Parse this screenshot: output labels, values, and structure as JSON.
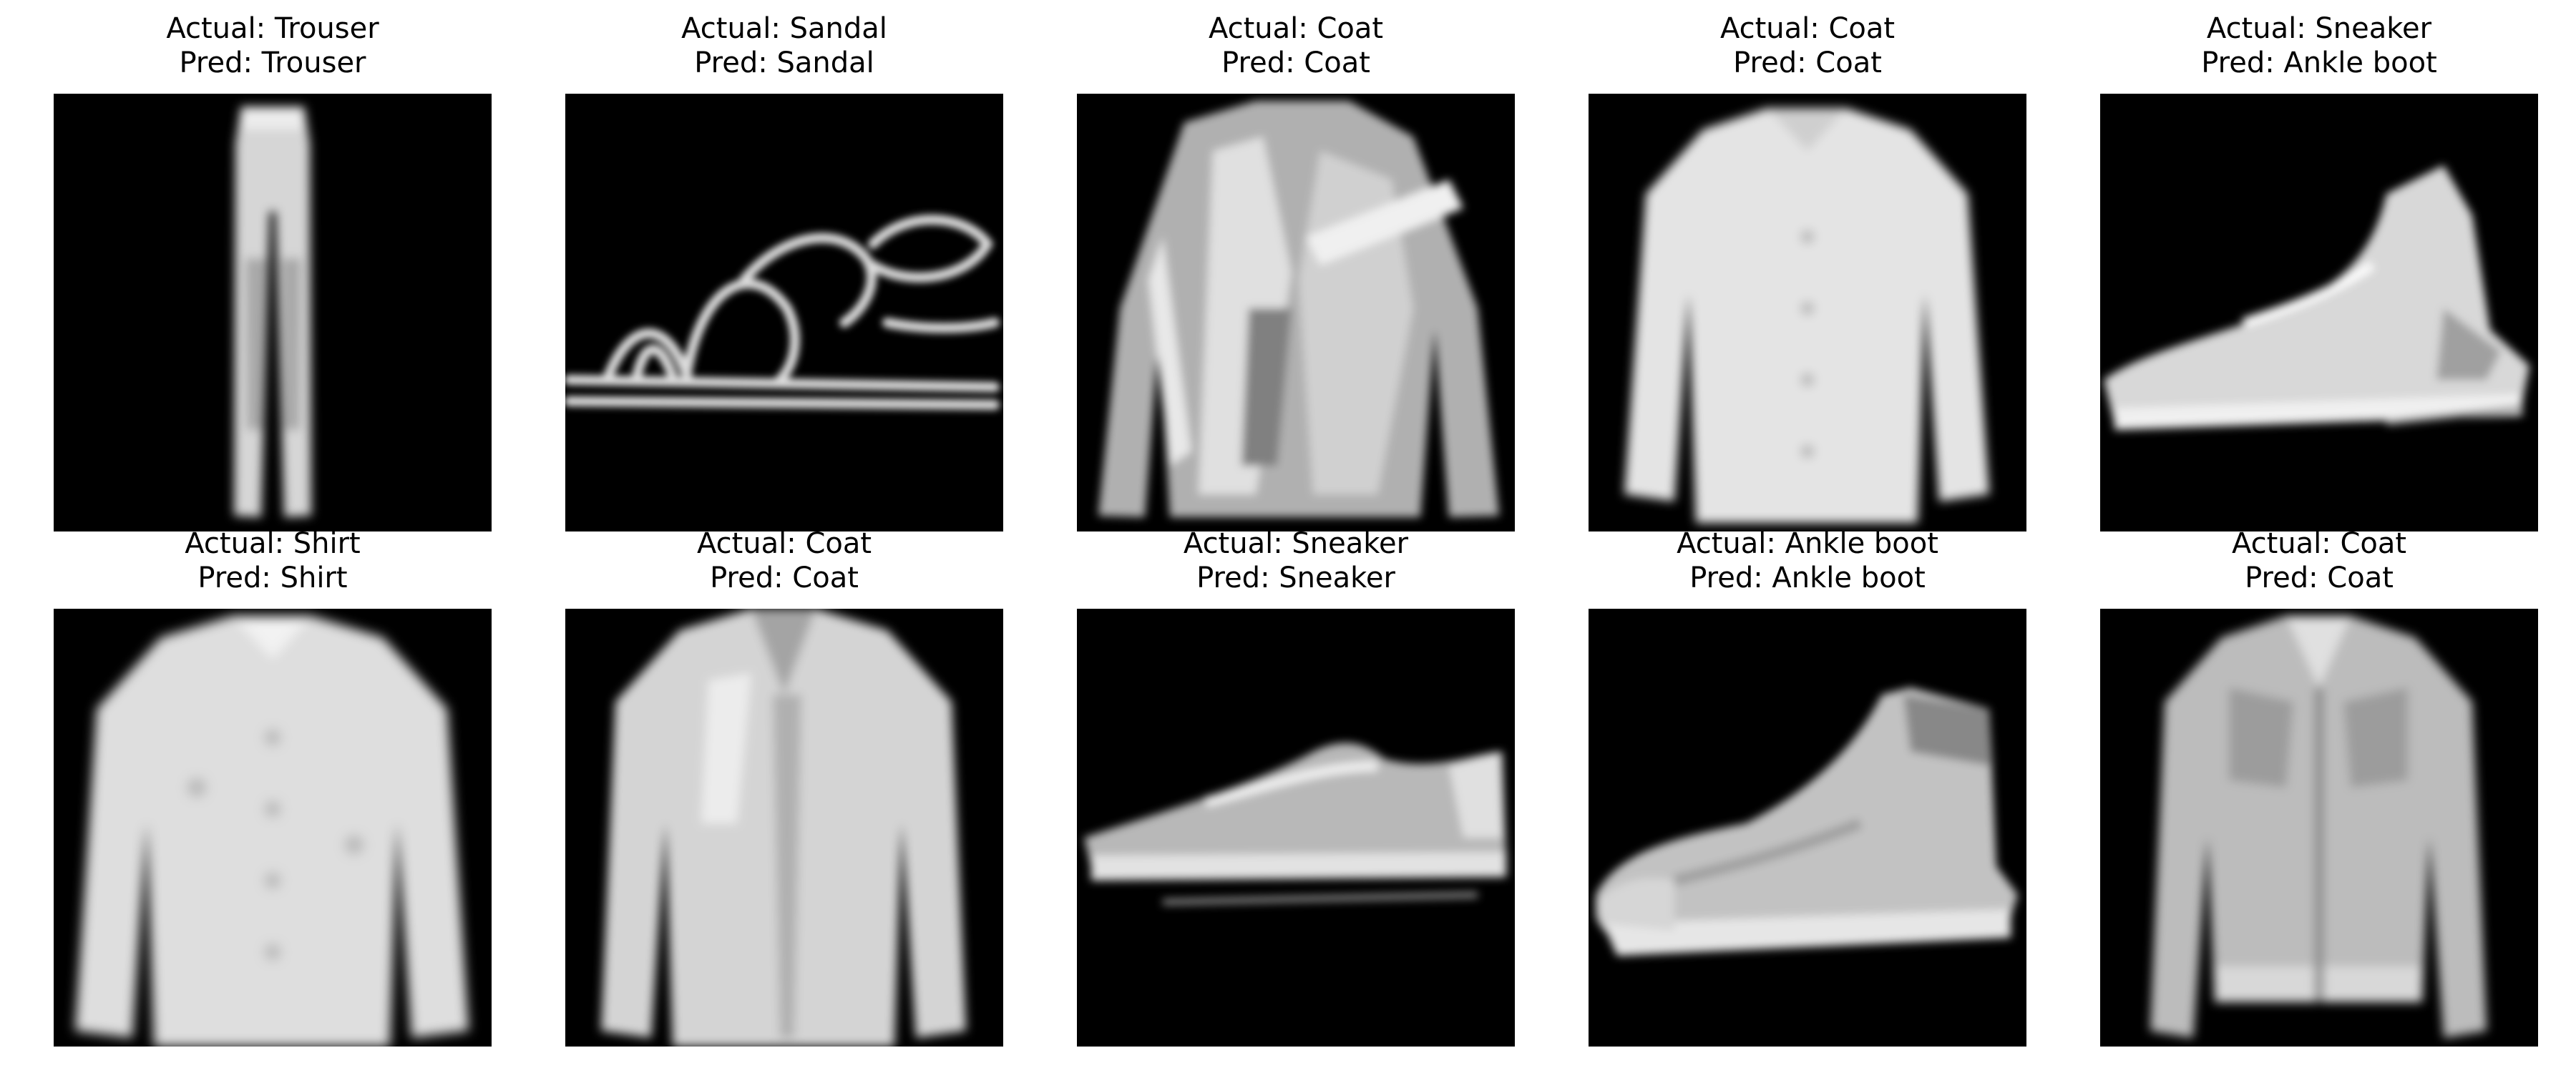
{
  "panels": [
    {
      "actual_label": "Actual: Trouser",
      "pred_label": "Pred: Trouser",
      "item": "trouser-image"
    },
    {
      "actual_label": "Actual: Sandal",
      "pred_label": "Pred: Sandal",
      "item": "sandal-image"
    },
    {
      "actual_label": "Actual: Coat",
      "pred_label": "Pred: Coat",
      "item": "coat-image"
    },
    {
      "actual_label": "Actual: Coat",
      "pred_label": "Pred: Coat",
      "item": "coat-image"
    },
    {
      "actual_label": "Actual: Sneaker",
      "pred_label": "Pred: Ankle boot",
      "item": "sneaker-image"
    },
    {
      "actual_label": "Actual: Shirt",
      "pred_label": "Pred: Shirt",
      "item": "shirt-image"
    },
    {
      "actual_label": "Actual: Coat",
      "pred_label": "Pred: Coat",
      "item": "coat-image"
    },
    {
      "actual_label": "Actual: Sneaker",
      "pred_label": "Pred: Sneaker",
      "item": "sneaker-image"
    },
    {
      "actual_label": "Actual: Ankle boot",
      "pred_label": "Pred: Ankle boot",
      "item": "ankle-boot-image"
    },
    {
      "actual_label": "Actual: Coat",
      "pred_label": "Pred: Coat",
      "item": "coat-image"
    }
  ],
  "colors": {
    "background": "#ffffff",
    "panel_background": "#000000",
    "title_text": "#000000",
    "item_light": "#e6e6e6",
    "item_mid": "#b8b8b8",
    "item_dark": "#8a8a8a"
  }
}
